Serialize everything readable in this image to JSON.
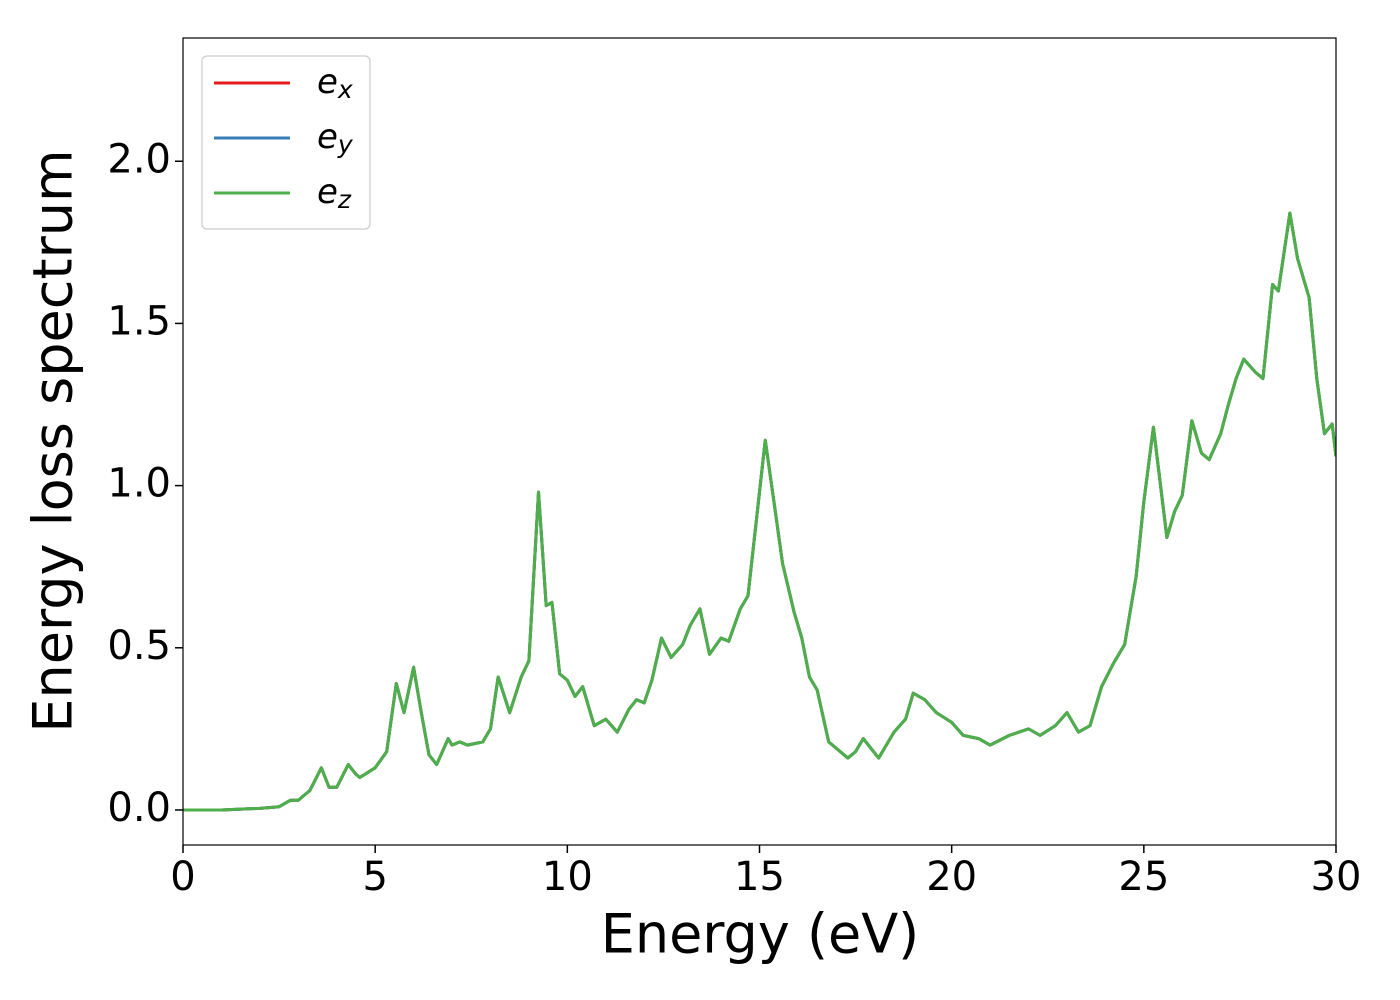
{
  "chart_data": {
    "type": "line",
    "xlabel": "Energy (eV)",
    "ylabel": "Energy loss spectrum",
    "xlim": [
      0,
      30
    ],
    "ylim": [
      -0.108,
      2.38
    ],
    "xticks": [
      0,
      5,
      10,
      15,
      20,
      25,
      30
    ],
    "yticks": [
      {
        "value": 0,
        "label": "0.0"
      },
      {
        "value": 0.5,
        "label": "0.5"
      },
      {
        "value": 1,
        "label": "1.0"
      },
      {
        "value": 1.5,
        "label": "1.5"
      },
      {
        "value": 2,
        "label": "2.0"
      }
    ],
    "legend": "upper left",
    "x": [
      0,
      1,
      2,
      2.5,
      2.8,
      3.0,
      3.3,
      3.6,
      3.8,
      4.0,
      4.3,
      4.5,
      4.6,
      5.0,
      5.3,
      5.55,
      5.75,
      6.0,
      6.2,
      6.4,
      6.6,
      6.9,
      7.0,
      7.2,
      7.4,
      7.8,
      8.0,
      8.2,
      8.5,
      8.8,
      9.0,
      9.25,
      9.45,
      9.6,
      9.8,
      10.0,
      10.2,
      10.4,
      10.7,
      11.0,
      11.3,
      11.6,
      11.8,
      12.0,
      12.2,
      12.45,
      12.7,
      13.0,
      13.2,
      13.45,
      13.7,
      14.0,
      14.2,
      14.5,
      14.7,
      15.0,
      15.15,
      15.4,
      15.6,
      15.9,
      16.1,
      16.3,
      16.5,
      16.8,
      17.0,
      17.3,
      17.5,
      17.7,
      18.1,
      18.5,
      18.8,
      19.0,
      19.3,
      19.6,
      20.0,
      20.3,
      20.7,
      21.0,
      21.5,
      22.0,
      22.3,
      22.7,
      23.0,
      23.3,
      23.6,
      23.9,
      24.2,
      24.5,
      24.8,
      25.0,
      25.25,
      25.6,
      25.8,
      26.0,
      26.25,
      26.5,
      26.7,
      27.0,
      27.2,
      27.4,
      27.6,
      27.9,
      28.1,
      28.35,
      28.5,
      28.8,
      29.0,
      29.3,
      29.5,
      29.7,
      29.9,
      30.0
    ],
    "series": [
      {
        "name": "ex",
        "color": "#e41a1c",
        "values": [
          0,
          0,
          0.005,
          0.01,
          0.03,
          0.03,
          0.06,
          0.13,
          0.07,
          0.07,
          0.14,
          0.11,
          0.1,
          0.13,
          0.18,
          0.39,
          0.3,
          0.44,
          0.3,
          0.17,
          0.14,
          0.22,
          0.2,
          0.21,
          0.2,
          0.21,
          0.25,
          0.41,
          0.3,
          0.41,
          0.46,
          0.98,
          0.63,
          0.64,
          0.42,
          0.4,
          0.35,
          0.38,
          0.26,
          0.28,
          0.24,
          0.31,
          0.34,
          0.33,
          0.4,
          0.53,
          0.47,
          0.51,
          0.57,
          0.62,
          0.48,
          0.53,
          0.52,
          0.62,
          0.66,
          0.98,
          1.14,
          0.93,
          0.76,
          0.61,
          0.53,
          0.41,
          0.37,
          0.21,
          0.19,
          0.16,
          0.18,
          0.22,
          0.16,
          0.24,
          0.28,
          0.36,
          0.34,
          0.3,
          0.27,
          0.23,
          0.22,
          0.2,
          0.23,
          0.25,
          0.23,
          0.26,
          0.3,
          0.24,
          0.26,
          0.38,
          0.45,
          0.51,
          0.72,
          0.95,
          1.18,
          0.84,
          0.92,
          0.97,
          1.2,
          1.1,
          1.08,
          1.16,
          1.25,
          1.33,
          1.39,
          1.35,
          1.33,
          1.62,
          1.6,
          1.84,
          1.7,
          1.58,
          1.33,
          1.16,
          1.19,
          1.09
        ]
      },
      {
        "name": "ey",
        "color": "#377eb8",
        "values": [
          0,
          0,
          0.005,
          0.01,
          0.03,
          0.03,
          0.06,
          0.13,
          0.07,
          0.07,
          0.14,
          0.11,
          0.1,
          0.13,
          0.18,
          0.39,
          0.3,
          0.44,
          0.3,
          0.17,
          0.14,
          0.22,
          0.2,
          0.21,
          0.2,
          0.21,
          0.25,
          0.41,
          0.3,
          0.41,
          0.46,
          0.98,
          0.63,
          0.64,
          0.42,
          0.4,
          0.35,
          0.38,
          0.26,
          0.28,
          0.24,
          0.31,
          0.34,
          0.33,
          0.4,
          0.53,
          0.47,
          0.51,
          0.57,
          0.62,
          0.48,
          0.53,
          0.52,
          0.62,
          0.66,
          0.98,
          1.14,
          0.93,
          0.76,
          0.61,
          0.53,
          0.41,
          0.37,
          0.21,
          0.19,
          0.16,
          0.18,
          0.22,
          0.16,
          0.24,
          0.28,
          0.36,
          0.34,
          0.3,
          0.27,
          0.23,
          0.22,
          0.2,
          0.23,
          0.25,
          0.23,
          0.26,
          0.3,
          0.24,
          0.26,
          0.38,
          0.45,
          0.51,
          0.72,
          0.95,
          1.18,
          0.84,
          0.92,
          0.97,
          1.2,
          1.1,
          1.08,
          1.16,
          1.25,
          1.33,
          1.39,
          1.35,
          1.33,
          1.62,
          1.6,
          1.84,
          1.7,
          1.58,
          1.33,
          1.16,
          1.19,
          1.09
        ]
      },
      {
        "name": "ez",
        "color": "#4daf4a",
        "values": [
          0,
          0,
          0.005,
          0.01,
          0.03,
          0.03,
          0.06,
          0.13,
          0.07,
          0.07,
          0.14,
          0.11,
          0.1,
          0.13,
          0.18,
          0.39,
          0.3,
          0.44,
          0.3,
          0.17,
          0.14,
          0.22,
          0.2,
          0.21,
          0.2,
          0.21,
          0.25,
          0.41,
          0.3,
          0.41,
          0.46,
          0.98,
          0.63,
          0.64,
          0.42,
          0.4,
          0.35,
          0.38,
          0.26,
          0.28,
          0.24,
          0.31,
          0.34,
          0.33,
          0.4,
          0.53,
          0.47,
          0.51,
          0.57,
          0.62,
          0.48,
          0.53,
          0.52,
          0.62,
          0.66,
          0.98,
          1.14,
          0.93,
          0.76,
          0.61,
          0.53,
          0.41,
          0.37,
          0.21,
          0.19,
          0.16,
          0.18,
          0.22,
          0.16,
          0.24,
          0.28,
          0.36,
          0.34,
          0.3,
          0.27,
          0.23,
          0.22,
          0.2,
          0.23,
          0.25,
          0.23,
          0.26,
          0.3,
          0.24,
          0.26,
          0.38,
          0.45,
          0.51,
          0.72,
          0.95,
          1.18,
          0.84,
          0.92,
          0.97,
          1.2,
          1.1,
          1.08,
          1.16,
          1.25,
          1.33,
          1.39,
          1.35,
          1.33,
          1.62,
          1.6,
          1.84,
          1.7,
          1.58,
          1.33,
          1.16,
          1.19,
          1.09
        ]
      }
    ]
  }
}
